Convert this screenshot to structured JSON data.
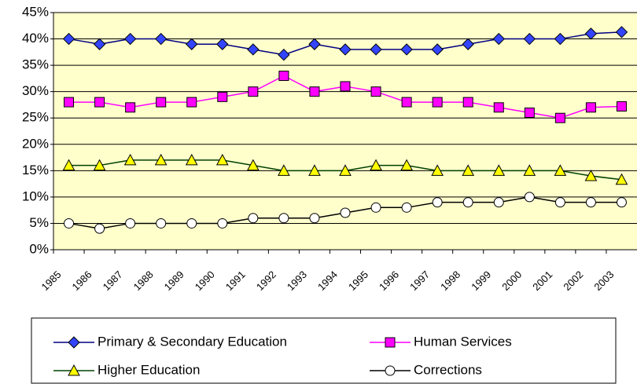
{
  "chart_data": {
    "type": "line",
    "categories": [
      "1985",
      "1986",
      "1987",
      "1988",
      "1989",
      "1990",
      "1991",
      "1992",
      "1993",
      "1994",
      "1995",
      "1996",
      "1997",
      "1998",
      "1999",
      "2000",
      "2001",
      "2002",
      "2003"
    ],
    "series": [
      {
        "name": "Primary & Secondary Education",
        "color": "#000080",
        "marker": "diamond",
        "marker_color": "#3344ff",
        "values": [
          40,
          39,
          40,
          40,
          39,
          39,
          38,
          37,
          39,
          38,
          38,
          38,
          38,
          39,
          40,
          40,
          40,
          41,
          41.3
        ]
      },
      {
        "name": "Human Services",
        "color": "#ff00ff",
        "marker": "square",
        "marker_color": "#ff00ff",
        "values": [
          28,
          28,
          27,
          28,
          28,
          29,
          30,
          33,
          30,
          31,
          30,
          28,
          28,
          28,
          27,
          26,
          25,
          27,
          27.2
        ]
      },
      {
        "name": "Higher Education",
        "color": "#004000",
        "marker": "triangle",
        "marker_color": "#ffff00",
        "values": [
          16,
          16,
          17,
          17,
          17,
          17,
          16,
          15,
          15,
          15,
          16,
          16,
          15,
          15,
          15,
          15,
          15,
          14,
          13.3
        ]
      },
      {
        "name": "Corrections",
        "color": "#000000",
        "marker": "circle",
        "marker_color": "#ffffff",
        "values": [
          5,
          4,
          5,
          5,
          5,
          5,
          6,
          6,
          6,
          7,
          8,
          8,
          9,
          9,
          9,
          10,
          9,
          9,
          9
        ]
      }
    ],
    "ylim": [
      0,
      45
    ],
    "yticks": [
      {
        "value": 0,
        "label": "0%"
      },
      {
        "value": 5,
        "label": "5%"
      },
      {
        "value": 10,
        "label": "10%"
      },
      {
        "value": 15,
        "label": "15%"
      },
      {
        "value": 20,
        "label": "20%"
      },
      {
        "value": 25,
        "label": "25%"
      },
      {
        "value": 30,
        "label": "30%"
      },
      {
        "value": 35,
        "label": "35%"
      },
      {
        "value": 40,
        "label": "40%"
      },
      {
        "value": 45,
        "label": "45%"
      }
    ],
    "grid": true,
    "plot_background": "#ffffcc"
  }
}
